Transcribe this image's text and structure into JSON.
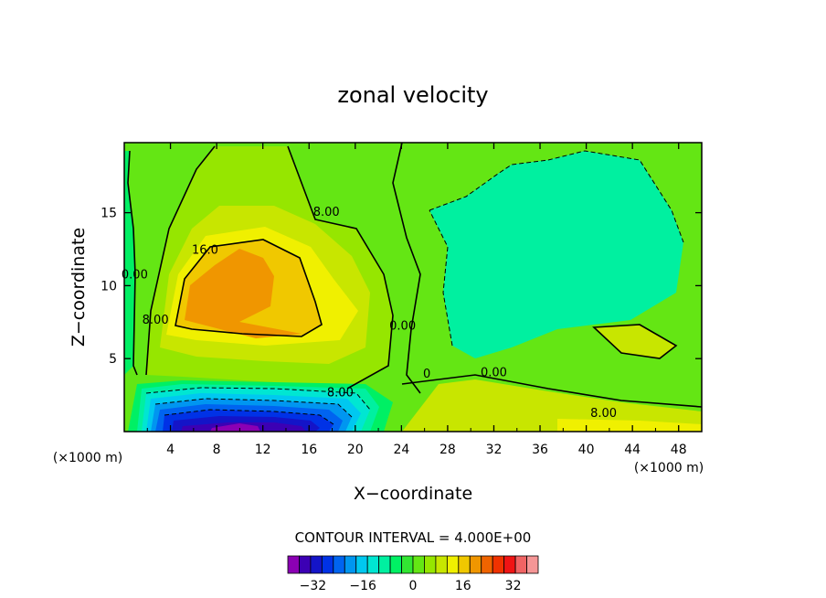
{
  "chart_data": {
    "type": "contour",
    "title": "zonal velocity",
    "xlabel": "X−coordinate",
    "ylabel": "Z−coordinate",
    "xunits_left": "(×1000 m)",
    "xunits_right": "(×1000 m)",
    "xlim": [
      0,
      50
    ],
    "ylim": [
      0,
      19.8
    ],
    "xticks": [
      4,
      8,
      12,
      16,
      20,
      24,
      28,
      32,
      36,
      40,
      44,
      48
    ],
    "yticks": [
      5,
      10,
      15
    ],
    "contour_interval_label": "CONTOUR INTERVAL = 4.000E+00",
    "contour_labels": [
      {
        "text": "0.00",
        "x": 0.9,
        "z": 10.5
      },
      {
        "text": "8.00",
        "x": 2.7,
        "z": 7.4
      },
      {
        "text": "16.0",
        "x": 7.0,
        "z": 12.2
      },
      {
        "text": "8.00",
        "x": 17.5,
        "z": 14.8
      },
      {
        "text": "0.00",
        "x": 24.1,
        "z": 7.0
      },
      {
        "text": "8.00",
        "x": 18.7,
        "z": 2.4
      },
      {
        "text": "0",
        "x": 26.2,
        "z": 3.7
      },
      {
        "text": "0.00",
        "x": 32.0,
        "z": 3.8
      },
      {
        "text": "8.00",
        "x": 41.5,
        "z": 1.0
      }
    ],
    "colorbar": {
      "min": -40,
      "max": 40,
      "step": 4,
      "tick_labels": [
        "−32",
        "−16",
        "0",
        "16",
        "32"
      ],
      "tick_values": [
        -32,
        -16,
        0,
        16,
        32
      ],
      "colors": [
        "#8b00b4",
        "#3c00b4",
        "#1414c8",
        "#0032e6",
        "#0064f0",
        "#0096f0",
        "#00c8f0",
        "#00e6d2",
        "#00f0a0",
        "#00f064",
        "#32e632",
        "#64e614",
        "#96e600",
        "#c8e600",
        "#f0f000",
        "#f0c800",
        "#f09600",
        "#f06400",
        "#f03200",
        "#f01414",
        "#f06464",
        "#f59696"
      ]
    }
  }
}
